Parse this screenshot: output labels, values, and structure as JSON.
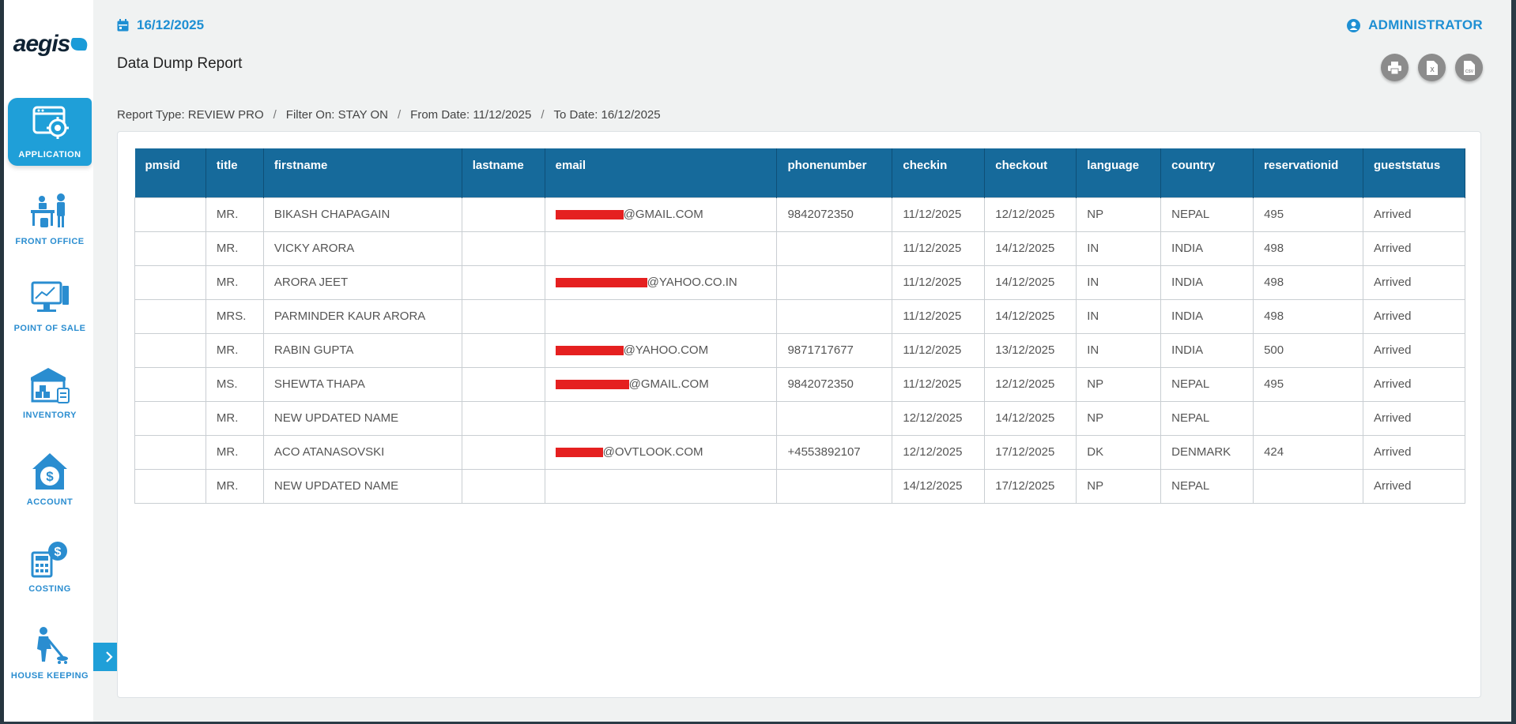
{
  "header": {
    "date": "16/12/2025",
    "user": "ADMINISTRATOR",
    "page_title": "Data Dump Report"
  },
  "actions": {
    "print_icon": "printer-icon",
    "excel_icon": "excel-file-icon",
    "csv_icon": "csv-file-icon"
  },
  "breadcrumb": {
    "report_type": "Report Type: REVIEW PRO",
    "filter": "Filter On: STAY ON",
    "from_date": "From Date: 11/12/2025",
    "to_date": "To Date: 16/12/2025",
    "separator": "/"
  },
  "sidebar": {
    "logo": "aegis",
    "items": [
      {
        "label": "APPLICATION",
        "icon": "application-settings-icon",
        "active": true
      },
      {
        "label": "FRONT OFFICE",
        "icon": "front-office-icon"
      },
      {
        "label": "POINT OF SALE",
        "icon": "point-of-sale-icon"
      },
      {
        "label": "INVENTORY",
        "icon": "inventory-icon"
      },
      {
        "label": "ACCOUNT",
        "icon": "account-icon"
      },
      {
        "label": "COSTING",
        "icon": "costing-icon"
      },
      {
        "label": "HOUSE KEEPING",
        "icon": "housekeeping-icon"
      }
    ]
  },
  "table": {
    "columns": [
      "pmsid",
      "title",
      "firstname",
      "lastname",
      "email",
      "phonenumber",
      "checkin",
      "checkout",
      "language",
      "country",
      "reservationid",
      "gueststatus"
    ],
    "rows": [
      {
        "pmsid": "",
        "title": "MR.",
        "firstname": "BIKASH CHAPAGAIN",
        "lastname": "",
        "email": "@GMAIL.COM",
        "phonenumber": "9842072350",
        "checkin": "11/12/2025",
        "checkout": "12/12/2025",
        "language": "NP",
        "country": "NEPAL",
        "reservationid": "495",
        "gueststatus": "Arrived"
      },
      {
        "pmsid": "",
        "title": "MR.",
        "firstname": "VICKY ARORA",
        "lastname": "",
        "email": "",
        "phonenumber": "",
        "checkin": "11/12/2025",
        "checkout": "14/12/2025",
        "language": "IN",
        "country": "INDIA",
        "reservationid": "498",
        "gueststatus": "Arrived"
      },
      {
        "pmsid": "",
        "title": "MR.",
        "firstname": "ARORA JEET",
        "lastname": "",
        "email": "@YAHOO.CO.IN",
        "phonenumber": "",
        "checkin": "11/12/2025",
        "checkout": "14/12/2025",
        "language": "IN",
        "country": "INDIA",
        "reservationid": "498",
        "gueststatus": "Arrived"
      },
      {
        "pmsid": "",
        "title": "MRS.",
        "firstname": "PARMINDER KAUR ARORA",
        "lastname": "",
        "email": "",
        "phonenumber": "",
        "checkin": "11/12/2025",
        "checkout": "14/12/2025",
        "language": "IN",
        "country": "INDIA",
        "reservationid": "498",
        "gueststatus": "Arrived"
      },
      {
        "pmsid": "",
        "title": "MR.",
        "firstname": "RABIN GUPTA",
        "lastname": "",
        "email": "@YAHOO.COM",
        "phonenumber": "9871717677",
        "checkin": "11/12/2025",
        "checkout": "13/12/2025",
        "language": "IN",
        "country": "INDIA",
        "reservationid": "500",
        "gueststatus": "Arrived"
      },
      {
        "pmsid": "",
        "title": "MS.",
        "firstname": "SHEWTA THAPA",
        "lastname": "",
        "email": "@GMAIL.COM",
        "phonenumber": "9842072350",
        "checkin": "11/12/2025",
        "checkout": "12/12/2025",
        "language": "NP",
        "country": "NEPAL",
        "reservationid": "495",
        "gueststatus": "Arrived"
      },
      {
        "pmsid": "",
        "title": "MR.",
        "firstname": "NEW UPDATED NAME",
        "lastname": "",
        "email": "",
        "phonenumber": "",
        "checkin": "12/12/2025",
        "checkout": "14/12/2025",
        "language": "NP",
        "country": "NEPAL",
        "reservationid": "",
        "gueststatus": "Arrived"
      },
      {
        "pmsid": "",
        "title": "MR.",
        "firstname": "ACO ATANASOVSKI",
        "lastname": "",
        "email": "@OVTLOOK.COM",
        "phonenumber": "+4553892107",
        "checkin": "12/12/2025",
        "checkout": "17/12/2025",
        "language": "DK",
        "country": "DENMARK",
        "reservationid": "424",
        "gueststatus": "Arrived"
      },
      {
        "pmsid": "",
        "title": "MR.",
        "firstname": "NEW UPDATED NAME",
        "lastname": "",
        "email": "",
        "phonenumber": "",
        "checkin": "14/12/2025",
        "checkout": "17/12/2025",
        "language": "NP",
        "country": "NEPAL",
        "reservationid": "",
        "gueststatus": "Arrived"
      }
    ]
  },
  "colors": {
    "accent": "#1f9fd8",
    "header_text": "#1e8fd3",
    "table_header": "#166a9b",
    "redaction": "#e52020"
  }
}
